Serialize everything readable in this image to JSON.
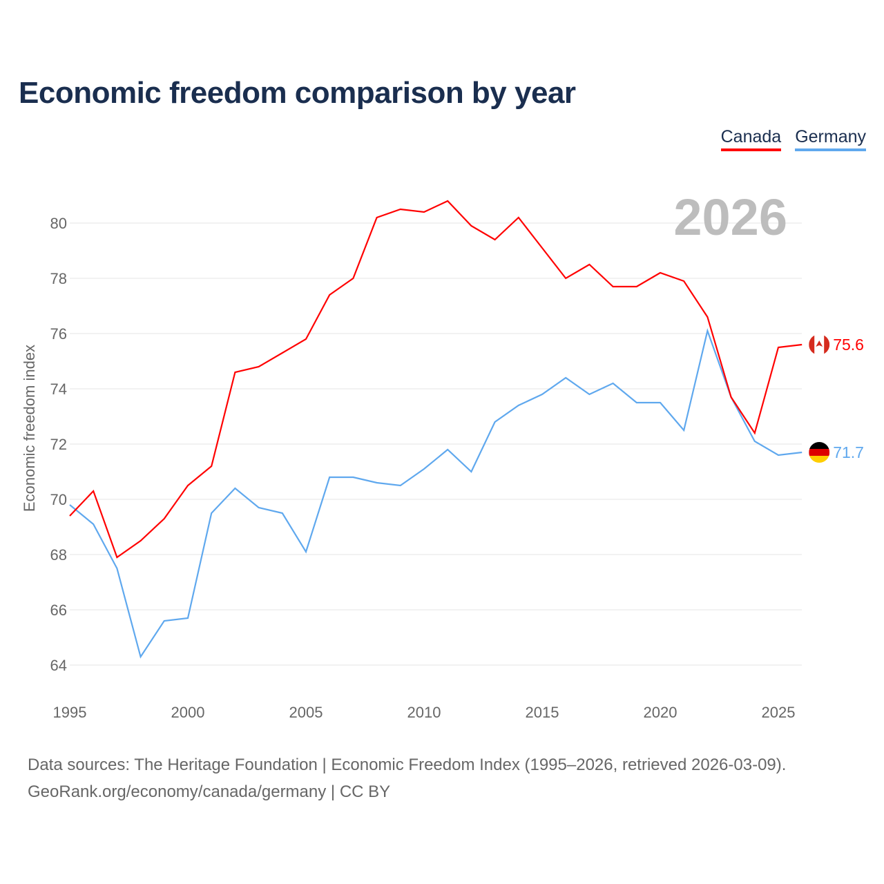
{
  "chart_data": {
    "type": "line",
    "title": "Economic freedom comparison by year",
    "xlabel": "",
    "ylabel": "Economic freedom index",
    "year_watermark": "2026",
    "xlim": [
      1995,
      2026
    ],
    "ylim": [
      63,
      82
    ],
    "x_ticks": [
      1995,
      2000,
      2005,
      2010,
      2015,
      2020,
      2025
    ],
    "y_ticks": [
      64,
      66,
      68,
      70,
      72,
      74,
      76,
      78,
      80
    ],
    "grid": true,
    "legend_position": "top-right",
    "x": [
      1995,
      1996,
      1997,
      1998,
      1999,
      2000,
      2001,
      2002,
      2003,
      2004,
      2005,
      2006,
      2007,
      2008,
      2009,
      2010,
      2011,
      2012,
      2013,
      2014,
      2015,
      2016,
      2017,
      2018,
      2019,
      2020,
      2021,
      2022,
      2023,
      2024,
      2025,
      2026
    ],
    "series": [
      {
        "name": "Canada",
        "color": "#ff0000",
        "end_label": "75.6",
        "flag": "canada-flag",
        "values": [
          69.4,
          70.3,
          67.9,
          68.5,
          69.3,
          70.5,
          71.2,
          74.6,
          74.8,
          75.3,
          75.8,
          77.4,
          78.0,
          80.2,
          80.5,
          80.4,
          80.8,
          79.9,
          79.4,
          80.2,
          79.1,
          78.0,
          78.5,
          77.7,
          77.7,
          78.2,
          77.9,
          76.6,
          73.7,
          72.4,
          75.5,
          75.6
        ]
      },
      {
        "name": "Germany",
        "color": "#5fa8ee",
        "end_label": "71.7",
        "flag": "germany-flag",
        "values": [
          69.8,
          69.1,
          67.5,
          64.3,
          65.6,
          65.7,
          69.5,
          70.4,
          69.7,
          69.5,
          68.1,
          70.8,
          70.8,
          70.6,
          70.5,
          71.1,
          71.8,
          71.0,
          72.8,
          73.4,
          73.8,
          74.4,
          73.8,
          74.2,
          73.5,
          73.5,
          72.5,
          76.1,
          73.7,
          72.1,
          71.6,
          71.7
        ]
      }
    ]
  },
  "source_line1": "Data sources: The Heritage Foundation | Economic Freedom Index (1995–2026, retrieved 2026-03-09).",
  "source_line2": "GeoRank.org/economy/canada/germany | CC BY"
}
